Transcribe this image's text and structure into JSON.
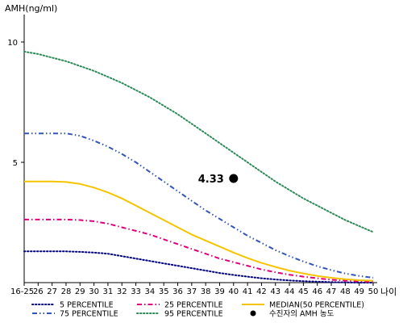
{
  "chart_data": {
    "type": "line",
    "ylabel": "AMH(ng/ml)",
    "xlabel": "나이",
    "ylim": [
      0,
      11
    ],
    "yticks": [
      5,
      10
    ],
    "categories": [
      "16-25",
      "26",
      "27",
      "28",
      "29",
      "30",
      "31",
      "32",
      "33",
      "34",
      "35",
      "36",
      "37",
      "38",
      "39",
      "40",
      "41",
      "42",
      "43",
      "44",
      "45",
      "46",
      "47",
      "48",
      "49",
      "50"
    ],
    "series": [
      {
        "name": "5 PERCENTILE",
        "color": "#000080",
        "dash": "dot",
        "values": [
          1.3,
          1.3,
          1.3,
          1.3,
          1.28,
          1.25,
          1.2,
          1.1,
          1.0,
          0.9,
          0.8,
          0.7,
          0.6,
          0.5,
          0.4,
          0.32,
          0.25,
          0.18,
          0.13,
          0.09,
          0.06,
          0.04,
          0.02,
          0.01,
          0.0,
          0.0
        ]
      },
      {
        "name": "25 PERCENTILE",
        "color": "#dd007f",
        "dash": "dashdot",
        "values": [
          2.62,
          2.62,
          2.62,
          2.62,
          2.6,
          2.55,
          2.45,
          2.3,
          2.15,
          2.0,
          1.8,
          1.6,
          1.4,
          1.2,
          1.0,
          0.85,
          0.7,
          0.55,
          0.43,
          0.33,
          0.25,
          0.18,
          0.12,
          0.08,
          0.05,
          0.03
        ]
      },
      {
        "name": "MEDIAN(50 PERCENTILE)",
        "color": "#f5c400",
        "dash": "solid",
        "values": [
          4.2,
          4.2,
          4.2,
          4.18,
          4.1,
          3.95,
          3.75,
          3.5,
          3.2,
          2.9,
          2.6,
          2.3,
          2.0,
          1.75,
          1.5,
          1.25,
          1.02,
          0.82,
          0.65,
          0.5,
          0.38,
          0.28,
          0.2,
          0.14,
          0.1,
          0.08
        ]
      },
      {
        "name": "75 PERCENTILE",
        "color": "#3355bb",
        "dash": "dashdotdot",
        "values": [
          6.2,
          6.2,
          6.2,
          6.2,
          6.1,
          5.9,
          5.65,
          5.35,
          5.0,
          4.6,
          4.2,
          3.8,
          3.4,
          3.0,
          2.65,
          2.3,
          1.95,
          1.65,
          1.35,
          1.1,
          0.88,
          0.68,
          0.52,
          0.38,
          0.28,
          0.2
        ]
      },
      {
        "name": "95 PERCENTILE",
        "color": "#2e8b57",
        "dash": "dot",
        "values": [
          9.6,
          9.5,
          9.35,
          9.2,
          9.0,
          8.8,
          8.55,
          8.3,
          8.0,
          7.7,
          7.35,
          7.0,
          6.6,
          6.2,
          5.8,
          5.4,
          5.0,
          4.6,
          4.2,
          3.85,
          3.5,
          3.2,
          2.9,
          2.6,
          2.35,
          2.1
        ]
      }
    ],
    "patient": {
      "category": "40",
      "value": 4.33,
      "label": "4.33",
      "name": "수진자의 AMH 농도"
    }
  }
}
